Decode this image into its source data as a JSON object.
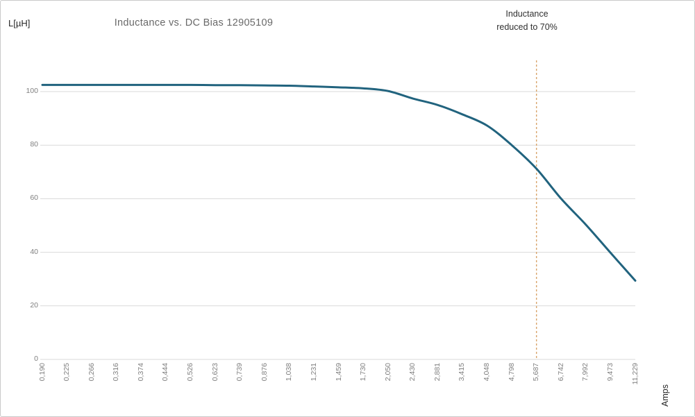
{
  "chart_data": {
    "type": "line",
    "title": "Inductance vs. DC Bias 12905109",
    "ylabel": "L[µH]",
    "xlabel": "Amps",
    "x_scale": "log-spaced categories",
    "grid": "horizontal",
    "legend": "none",
    "categories": [
      "0,190",
      "0,225",
      "0,266",
      "0,316",
      "0,374",
      "0,444",
      "0,526",
      "0,623",
      "0,739",
      "0,876",
      "1,038",
      "1,231",
      "1,459",
      "1,730",
      "2,050",
      "2,430",
      "2,881",
      "3,415",
      "4,048",
      "4,798",
      "5,687",
      "6,742",
      "7,992",
      "9,473",
      "11,229"
    ],
    "y_ticks": [
      0,
      20,
      40,
      60,
      80,
      100
    ],
    "ylim": [
      0,
      112
    ],
    "series": [
      {
        "name": "Inductance",
        "color": "#21637e",
        "values": [
          102.5,
          102.5,
          102.5,
          102.5,
          102.5,
          102.5,
          102.5,
          102.4,
          102.4,
          102.3,
          102.2,
          101.9,
          101.6,
          101.2,
          100.2,
          97.4,
          95.0,
          91.5,
          87.3,
          80.0,
          71.2,
          60.0,
          50.3,
          39.8,
          29.4
        ]
      }
    ],
    "marker": {
      "category": "5,687",
      "style": "dashed-vertical",
      "color": "#d9a46b",
      "label_line1": "Inductance",
      "label_line2": "reduced to 70%"
    }
  },
  "colors": {
    "gridline": "#d9d9d9",
    "tick_text": "#7f7f7f",
    "title_text": "#696969",
    "label_text": "#262626"
  }
}
